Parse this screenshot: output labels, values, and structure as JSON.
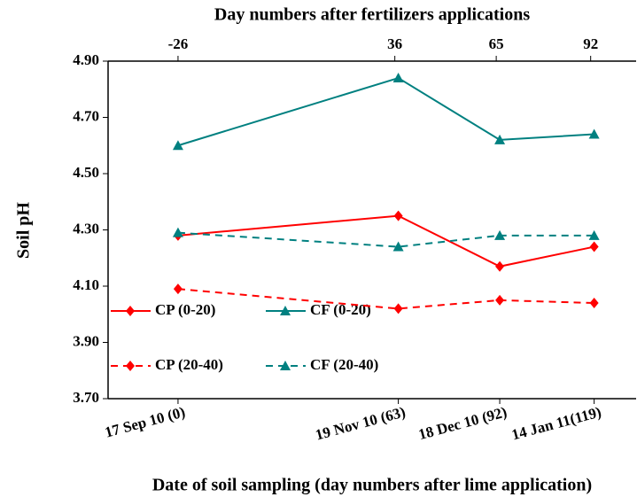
{
  "chart_data": {
    "type": "line",
    "x2_label": "Day numbers after fertilizers applications",
    "x_label": "Date of soil sampling (day numbers after lime application)",
    "y_label": "Soil pH",
    "x": [
      0,
      63,
      92,
      119
    ],
    "xlim": [
      -20,
      131
    ],
    "xticks": [
      {
        "value": 0,
        "label": "17 Sep  10 (0)"
      },
      {
        "value": 63,
        "label": "19 Nov 10 (63)"
      },
      {
        "value": 92,
        "label": "18 Dec  10 (92)"
      },
      {
        "value": 119,
        "label": "14 Jan 11(119)"
      }
    ],
    "x2lim": [
      -46,
      105
    ],
    "x2ticks": [
      -26,
      36,
      65,
      92
    ],
    "ylim": [
      3.7,
      4.9
    ],
    "yticks": [
      {
        "value": 3.7,
        "label": "3.70"
      },
      {
        "value": 3.9,
        "label": "3.90"
      },
      {
        "value": 4.1,
        "label": "4.10"
      },
      {
        "value": 4.3,
        "label": "4.30"
      },
      {
        "value": 4.5,
        "label": "4.50"
      },
      {
        "value": 4.7,
        "label": "4.70"
      },
      {
        "value": 4.9,
        "label": "4.90"
      }
    ],
    "series": [
      {
        "name": "CP (0-20)",
        "color": "#ff0000",
        "dash": false,
        "marker": "diamond",
        "values": [
          4.28,
          4.35,
          4.17,
          4.24
        ]
      },
      {
        "name": "CF (0-20)",
        "color": "#008080",
        "dash": false,
        "marker": "triangle",
        "values": [
          4.6,
          4.84,
          4.62,
          4.64
        ]
      },
      {
        "name": "CP (20-40)",
        "color": "#ff0000",
        "dash": true,
        "marker": "diamond",
        "values": [
          4.09,
          4.02,
          4.05,
          4.04
        ]
      },
      {
        "name": "CF (20-40)",
        "color": "#008080",
        "dash": true,
        "marker": "triangle",
        "values": [
          4.29,
          4.24,
          4.28,
          4.28
        ]
      }
    ]
  }
}
